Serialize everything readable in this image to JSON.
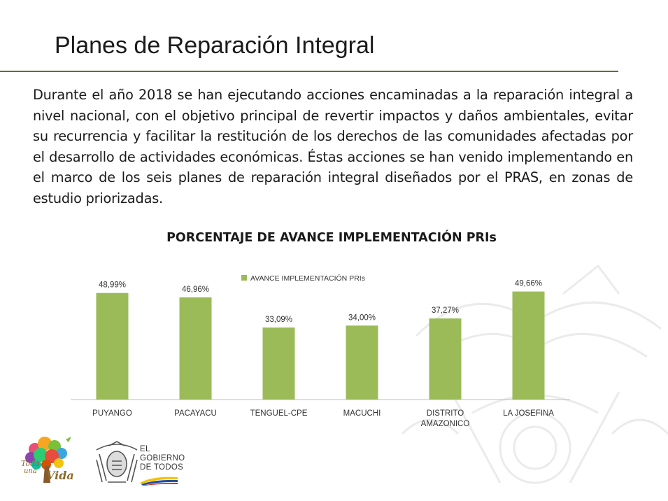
{
  "slide": {
    "title": "Planes de Reparación Integral",
    "paragraph": "Durante el año 2018 se han ejecutando acciones encaminadas a la reparación integral a nivel nacional, con el objetivo principal de revertir impactos y daños ambientales, evitar su recurrencia y facilitar la restitución de los derechos de las comunidades afectadas por el desarrollo de actividades económicas. Éstas acciones se han venido implementando en el marco de los seis planes de reparación integral diseñados por el PRAS, en zonas de estudio priorizadas."
  },
  "chart_data": {
    "type": "bar",
    "title": "PORCENTAJE DE AVANCE IMPLEMENTACIÓN PRIs",
    "categories": [
      "PUYANGO",
      "PACAYACU",
      "TENGUEL-CPE",
      "MACUCHI",
      "DISTRITO AMAZONICO",
      "LA JOSEFINA"
    ],
    "category_lines": [
      [
        "PUYANGO"
      ],
      [
        "PACAYACU"
      ],
      [
        "TENGUEL-CPE"
      ],
      [
        "MACUCHI"
      ],
      [
        "DISTRITO",
        "AMAZONICO"
      ],
      [
        "LA JOSEFINA"
      ]
    ],
    "series": [
      {
        "name": "AVANCE IMPLEMENTACIÓN PRIs",
        "values": [
          48.99,
          46.96,
          33.09,
          34.0,
          37.27,
          49.66
        ],
        "labels": [
          "48,99%",
          "46,96%",
          "33,09%",
          "34,00%",
          "37,27%",
          "49,66%"
        ],
        "color": "#9bbb59"
      }
    ],
    "legend": "top",
    "grid": false,
    "ylim": [
      0,
      55
    ]
  },
  "logos": {
    "tree_line1": "Toda",
    "tree_line2": "una",
    "tree_line3": "Vida",
    "gov_line1": "EL",
    "gov_line2": "GOBIERNO",
    "gov_line3": "DE TODOS"
  },
  "colors": {
    "bar": "#9bbb59",
    "rule": "#6b6b2a",
    "axis": "#bfbfbf"
  }
}
